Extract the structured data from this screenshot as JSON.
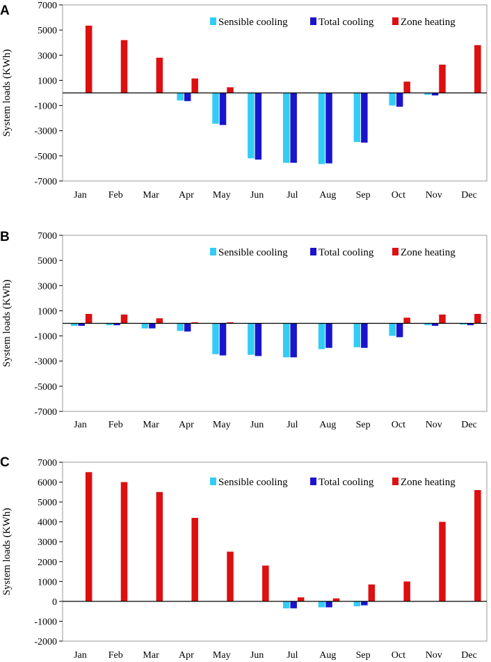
{
  "figure": "System loads by month",
  "chart_data": [
    {
      "panel": "A",
      "type": "bar",
      "title": "",
      "xlabel": "",
      "ylabel": "System loads (KWh)",
      "ylim": [
        -7000,
        7000
      ],
      "yticks": [
        -7000,
        -5000,
        -3000,
        -1000,
        1000,
        3000,
        5000,
        7000
      ],
      "ytick_labels": [
        "-7000",
        "-5000",
        "-3000",
        "-1000",
        "1000",
        "3000",
        "5000",
        "7000"
      ],
      "categories": [
        "Jan",
        "Feb",
        "Mar",
        "Apr",
        "May",
        "Jun",
        "Jul",
        "Aug",
        "Sep",
        "Oct",
        "Nov",
        "Dec"
      ],
      "series": [
        {
          "name": "Sensible cooling",
          "color": "#33ccf5",
          "values": [
            0,
            0,
            0,
            -600,
            -2450,
            -5200,
            -5550,
            -5650,
            -3900,
            -1000,
            -150,
            0
          ]
        },
        {
          "name": "Total cooling",
          "color": "#1a14cc",
          "values": [
            0,
            0,
            0,
            -650,
            -2550,
            -5300,
            -5550,
            -5600,
            -3950,
            -1100,
            -200,
            0
          ]
        },
        {
          "name": "Zone heating",
          "color": "#dd0f10",
          "values": [
            5350,
            4200,
            2800,
            1150,
            450,
            0,
            0,
            0,
            0,
            900,
            2250,
            3800
          ]
        }
      ],
      "legend": "top"
    },
    {
      "panel": "B",
      "type": "bar",
      "title": "",
      "xlabel": "",
      "ylabel": "System loads (KWh)",
      "ylim": [
        -7000,
        7000
      ],
      "yticks": [
        -7000,
        -5000,
        -3000,
        -1000,
        1000,
        3000,
        5000,
        7000
      ],
      "ytick_labels": [
        "-7000",
        "-5000",
        "-3000",
        "-1000",
        "1000",
        "3000",
        "5000",
        "7000"
      ],
      "categories": [
        "Jan",
        "Feb",
        "Mar",
        "Apr",
        "May",
        "Jun",
        "Jul",
        "Aug",
        "Sep",
        "Oct",
        "Nov",
        "Dec"
      ],
      "series": [
        {
          "name": "Sensible cooling",
          "color": "#33ccf5",
          "values": [
            -200,
            -150,
            -400,
            -600,
            -2450,
            -2500,
            -2700,
            -2050,
            -1900,
            -1000,
            -150,
            -100
          ]
        },
        {
          "name": "Total cooling",
          "color": "#1a14cc",
          "values": [
            -200,
            -150,
            -400,
            -650,
            -2550,
            -2600,
            -2700,
            -1950,
            -1950,
            -1100,
            -200,
            -150
          ]
        },
        {
          "name": "Zone heating",
          "color": "#dd0f10",
          "values": [
            750,
            700,
            400,
            80,
            80,
            0,
            0,
            0,
            30,
            450,
            700,
            750
          ]
        }
      ],
      "legend": "top"
    },
    {
      "panel": "C",
      "type": "bar",
      "title": "",
      "xlabel": "",
      "ylabel": "System loads (KWh)",
      "ylim": [
        -2000,
        7000
      ],
      "yticks": [
        -2000,
        -1000,
        0,
        1000,
        2000,
        3000,
        4000,
        5000,
        6000,
        7000
      ],
      "ytick_labels": [
        "-2000",
        "-1000",
        "0",
        "1000",
        "2000",
        "3000",
        "4000",
        "5000",
        "6000",
        "7000"
      ],
      "categories": [
        "Jan",
        "Feb",
        "Mar",
        "Apr",
        "May",
        "Jun",
        "Jul",
        "Aug",
        "Sep",
        "Oct",
        "Nov",
        "Dec"
      ],
      "series": [
        {
          "name": "Sensible cooling",
          "color": "#33ccf5",
          "values": [
            0,
            0,
            0,
            0,
            0,
            0,
            -350,
            -300,
            -250,
            0,
            0,
            0
          ]
        },
        {
          "name": "Total cooling",
          "color": "#1a14cc",
          "values": [
            0,
            0,
            0,
            0,
            0,
            0,
            -350,
            -300,
            -200,
            0,
            0,
            0
          ]
        },
        {
          "name": "Zone heating",
          "color": "#dd0f10",
          "values": [
            6500,
            6000,
            5500,
            4200,
            2500,
            1800,
            200,
            150,
            850,
            1000,
            4000,
            5600
          ]
        }
      ],
      "legend": "top"
    }
  ]
}
